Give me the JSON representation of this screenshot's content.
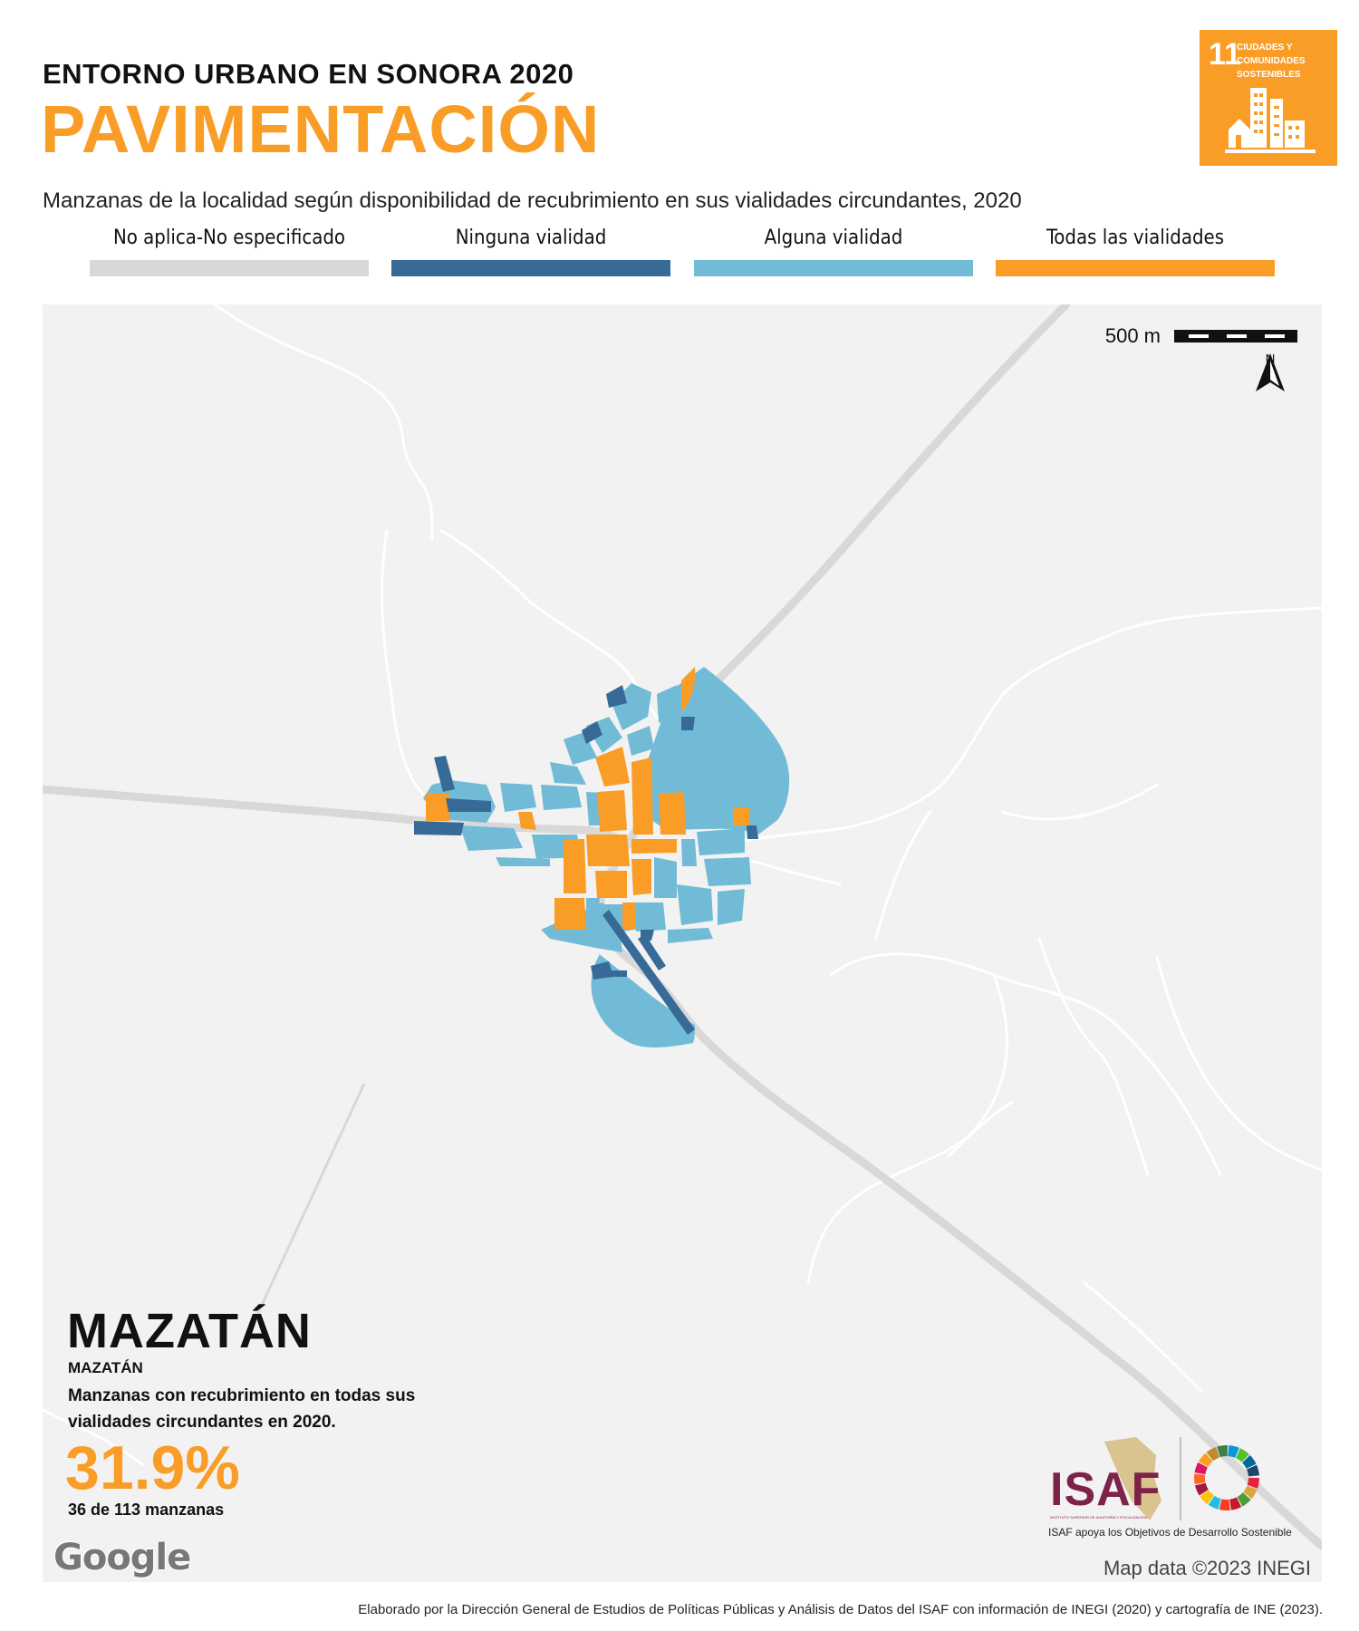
{
  "header": {
    "supertitle": "ENTORNO URBANO EN SONORA 2020",
    "title": "PAVIMENTACIÓN",
    "subtitle": "Manzanas de la localidad según disponibilidad de recubrimiento en sus vialidades circundantes, 2020"
  },
  "sdg_badge": {
    "number": "11",
    "text": "CIUDADES Y COMUNIDADES SOSTENIBLES",
    "color": "#F99D26"
  },
  "legend": [
    {
      "label": "No aplica-No especificado",
      "color": "#D8D8D8"
    },
    {
      "label": "Ninguna vialidad",
      "color": "#376A96"
    },
    {
      "label": "Alguna vialidad",
      "color": "#72BBD6"
    },
    {
      "label": "Todas las vialidades",
      "color": "#F99D26"
    }
  ],
  "map": {
    "scale_label": "500 m",
    "north_label": "N",
    "google_logo": "Google",
    "credit": "Map data ©2023 INEGI"
  },
  "place": {
    "municipality": "MAZATÁN",
    "locality": "MAZATÁN",
    "metric_label": "Manzanas con recubrimiento en todas sus vialidades circundantes en 2020.",
    "metric_value": "31.9%",
    "metric_count": "36 de 113 manzanas"
  },
  "branding": {
    "isaf_name": "ISAF",
    "isaf_subtext": "INSTITUTO SUPERIOR DE AUDITORÍA Y FISCALIZACIÓN",
    "isaf_tagline": "ISAF apoya los Objetivos de Desarrollo Sostenible"
  },
  "footer": "Elaborado por la Dirección General de Estudios de Políticas Públicas y Análisis de Datos del ISAF con información de INEGI (2020) y cartografía de INE (2023)."
}
